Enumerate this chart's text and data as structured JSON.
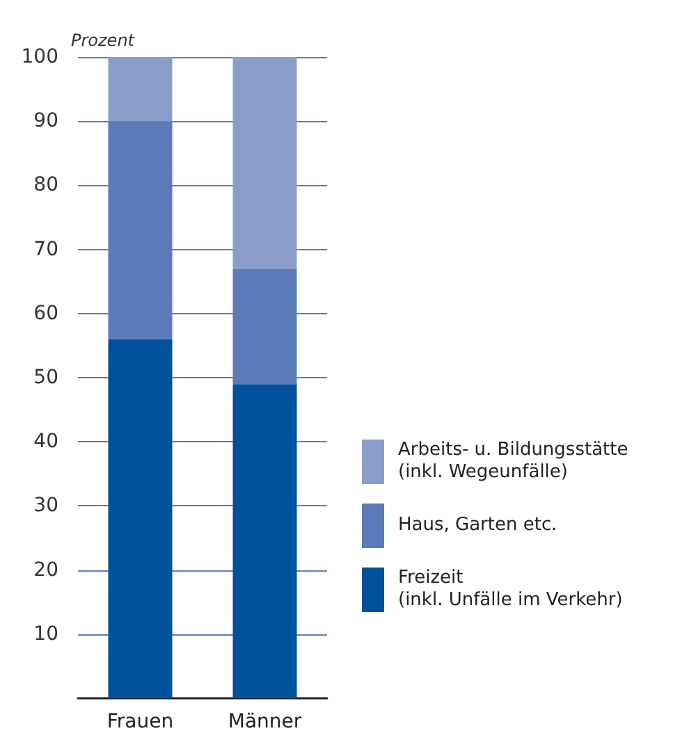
{
  "chart_data": {
    "type": "bar",
    "stacked": true,
    "ylabel": "Prozent",
    "categories": [
      "Frauen",
      "Männer"
    ],
    "series": [
      {
        "name": "Freizeit\n(inkl. Unfälle im Verkehr)",
        "color": "#00529b",
        "values": [
          56,
          49
        ]
      },
      {
        "name": "Haus, Garten etc.",
        "color": "#5a7bb8",
        "values": [
          34,
          18
        ]
      },
      {
        "name": "Arbeits- u. Bildungsstätte\n(inkl. Wegeunfälle)",
        "color": "#8a9ec9",
        "values": [
          10,
          33
        ]
      }
    ],
    "ylim": [
      0,
      100
    ],
    "yticks": [
      10,
      20,
      30,
      40,
      50,
      60,
      70,
      80,
      90,
      100
    ],
    "grid": "y",
    "legend": "bottom right"
  }
}
